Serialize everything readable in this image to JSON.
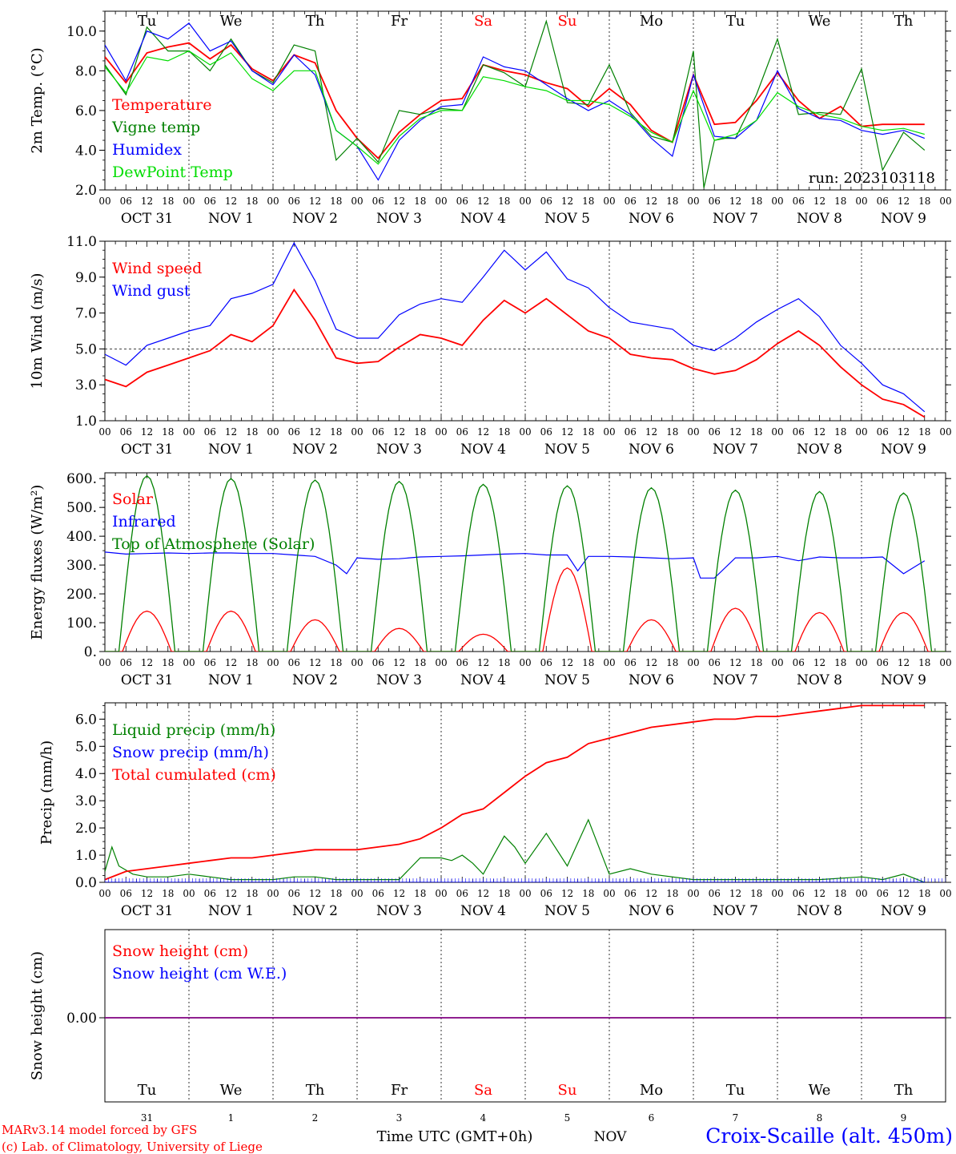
{
  "days": {
    "names": [
      "Tu",
      "We",
      "Th",
      "Fr",
      "Sa",
      "Su",
      "Mo",
      "Tu",
      "We",
      "Th"
    ],
    "weekend_indices": [
      4,
      5
    ],
    "date_labels": [
      "OCT 31",
      "NOV  1",
      "NOV  2",
      "NOV  3",
      "NOV  4",
      "NOV  5",
      "NOV  6",
      "NOV  7",
      "NOV  8",
      "NOV  9"
    ],
    "hour_ticks": [
      "00",
      "06",
      "12",
      "18"
    ],
    "final_tick": "00",
    "day_numbers": [
      "31",
      "1",
      "2",
      "3",
      "4",
      "5",
      "6",
      "7",
      "8",
      "9"
    ]
  },
  "colors": {
    "red": "#ff0000",
    "green": "#008000",
    "blue": "#0000ff",
    "lightgreen": "#00dd00",
    "purple": "#800080",
    "weekend": "#ff0000"
  },
  "run_label": "run: 2023103118",
  "footer": {
    "model": "MARv3.14 model forced by GFS",
    "lab": "(c) Lab. of Climatology, University of Liege",
    "xlabel": "Time UTC (GMT+0h)",
    "month": "NOV",
    "station": "Croix-Scaille (alt. 450m)"
  },
  "chart_data": [
    {
      "type": "line",
      "ylabel": "2m Temp. (°C)",
      "ylim": [
        2,
        11
      ],
      "yticks": [
        "2.0",
        "4.0",
        "6.0",
        "8.0",
        "10.0"
      ],
      "ytick_values": [
        2,
        4,
        6,
        8,
        10
      ],
      "x_unit": "hours since Oct 31 00 UTC",
      "series": [
        {
          "name": "Temperature",
          "color": "#ff0000",
          "x": [
            0,
            6,
            12,
            18,
            24,
            30,
            36,
            42,
            48,
            54,
            60,
            66,
            72,
            78,
            84,
            90,
            96,
            102,
            108,
            114,
            120,
            126,
            132,
            138,
            144,
            150,
            156,
            162,
            168,
            174,
            180,
            186,
            192,
            198,
            204,
            210,
            216,
            222,
            228,
            234
          ],
          "y": [
            8.7,
            7.4,
            8.9,
            9.2,
            9.4,
            8.6,
            9.3,
            8.1,
            7.5,
            8.8,
            8.4,
            6.0,
            4.6,
            3.6,
            4.9,
            5.8,
            6.5,
            6.6,
            8.3,
            8.0,
            7.8,
            7.4,
            7.1,
            6.2,
            7.1,
            6.3,
            5.0,
            4.4,
            7.8,
            5.3,
            5.4,
            6.5,
            7.9,
            6.5,
            5.6,
            6.2,
            5.2,
            5.3,
            5.3,
            5.3
          ]
        },
        {
          "name": "Vigne temp",
          "color": "#008000",
          "x": [
            0,
            6,
            12,
            18,
            24,
            30,
            36,
            42,
            48,
            54,
            60,
            66,
            72,
            78,
            84,
            90,
            96,
            102,
            108,
            114,
            120,
            126,
            132,
            138,
            144,
            150,
            156,
            162,
            168,
            171,
            174,
            177,
            180,
            186,
            192,
            198,
            204,
            210,
            216,
            222,
            228,
            234
          ],
          "y": [
            8.3,
            6.8,
            10.2,
            9.0,
            9.0,
            8.0,
            9.6,
            8.0,
            7.4,
            9.3,
            9.0,
            3.5,
            4.6,
            3.4,
            6.0,
            5.8,
            6.1,
            6.0,
            8.3,
            7.9,
            7.2,
            10.5,
            6.4,
            6.3,
            8.3,
            5.9,
            4.7,
            4.4,
            9.0,
            2.1,
            4.5,
            4.6,
            4.6,
            6.8,
            9.6,
            5.8,
            5.9,
            5.8,
            8.1,
            3.0,
            4.9,
            4.0
          ]
        },
        {
          "name": "Humidex",
          "color": "#0000ff",
          "x": [
            0,
            6,
            12,
            18,
            24,
            30,
            36,
            42,
            48,
            54,
            60,
            66,
            72,
            78,
            84,
            90,
            96,
            102,
            108,
            114,
            120,
            126,
            132,
            138,
            144,
            150,
            156,
            162,
            168,
            174,
            180,
            186,
            192,
            198,
            204,
            210,
            216,
            222,
            228,
            234
          ],
          "y": [
            9.3,
            7.5,
            10.0,
            9.6,
            10.4,
            9.0,
            9.5,
            8.0,
            7.3,
            8.8,
            7.8,
            5.0,
            4.2,
            2.5,
            4.5,
            5.5,
            6.2,
            6.3,
            8.7,
            8.2,
            8.0,
            7.3,
            6.6,
            6.0,
            6.5,
            5.8,
            4.6,
            3.7,
            7.8,
            4.7,
            4.6,
            5.5,
            8.0,
            6.1,
            5.6,
            5.5,
            5.0,
            4.8,
            5.0,
            4.6
          ]
        },
        {
          "name": "DewPoint Temp",
          "color": "#00dd00",
          "x": [
            0,
            6,
            12,
            18,
            24,
            30,
            36,
            42,
            48,
            54,
            60,
            66,
            72,
            78,
            84,
            90,
            96,
            102,
            108,
            114,
            120,
            126,
            132,
            138,
            144,
            150,
            156,
            162,
            168,
            174,
            180,
            186,
            192,
            198,
            204,
            210,
            216,
            222,
            228,
            234
          ],
          "y": [
            8.2,
            6.9,
            8.7,
            8.5,
            9.0,
            8.3,
            8.9,
            7.6,
            7.0,
            8.0,
            8.0,
            5.0,
            4.2,
            3.3,
            4.7,
            5.6,
            6.0,
            6.0,
            7.7,
            7.5,
            7.2,
            7.0,
            6.5,
            6.5,
            6.3,
            5.7,
            4.9,
            4.4,
            7.0,
            4.5,
            4.8,
            5.5,
            6.9,
            6.2,
            5.8,
            5.6,
            5.2,
            5.0,
            5.1,
            4.8
          ]
        }
      ]
    },
    {
      "type": "line",
      "ylabel": "10m Wind (m/s)",
      "ylim": [
        1,
        11
      ],
      "yticks": [
        "1.0",
        "3.0",
        "5.0",
        "7.0",
        "9.0",
        "11.0"
      ],
      "ytick_values": [
        1,
        3,
        5,
        7,
        9,
        11
      ],
      "reference_line": 5.0,
      "series": [
        {
          "name": "Wind speed",
          "color": "#ff0000",
          "x": [
            0,
            6,
            12,
            18,
            24,
            30,
            36,
            42,
            48,
            54,
            60,
            66,
            72,
            78,
            84,
            90,
            96,
            102,
            108,
            114,
            120,
            126,
            132,
            138,
            144,
            150,
            156,
            162,
            168,
            174,
            180,
            186,
            192,
            198,
            204,
            210,
            216,
            222,
            228,
            234
          ],
          "y": [
            3.3,
            2.9,
            3.7,
            4.1,
            4.5,
            4.9,
            5.8,
            5.4,
            6.3,
            8.3,
            6.6,
            4.5,
            4.2,
            4.3,
            5.1,
            5.8,
            5.6,
            5.2,
            6.6,
            7.7,
            7.0,
            7.8,
            6.9,
            6.0,
            5.6,
            4.7,
            4.5,
            4.4,
            3.9,
            3.6,
            3.8,
            4.4,
            5.3,
            6.0,
            5.2,
            4.0,
            3.0,
            2.2,
            1.9,
            1.2
          ]
        },
        {
          "name": "Wind gust",
          "color": "#0000ff",
          "x": [
            0,
            6,
            12,
            18,
            24,
            30,
            36,
            42,
            48,
            54,
            60,
            66,
            72,
            78,
            84,
            90,
            96,
            102,
            108,
            114,
            120,
            126,
            132,
            138,
            144,
            150,
            156,
            162,
            168,
            174,
            180,
            186,
            192,
            198,
            204,
            210,
            216,
            222,
            228,
            234
          ],
          "y": [
            4.7,
            4.1,
            5.2,
            5.6,
            6.0,
            6.3,
            7.8,
            8.1,
            8.6,
            10.9,
            8.8,
            6.1,
            5.6,
            5.6,
            6.9,
            7.5,
            7.8,
            7.6,
            9.0,
            10.5,
            9.4,
            10.4,
            8.9,
            8.4,
            7.3,
            6.5,
            6.3,
            6.1,
            5.2,
            4.9,
            5.6,
            6.5,
            7.2,
            7.8,
            6.8,
            5.2,
            4.2,
            3.0,
            2.5,
            1.5
          ]
        }
      ]
    },
    {
      "type": "line",
      "ylabel": "Energy fluxes (W/m²)",
      "ylim": [
        0,
        620
      ],
      "yticks": [
        "0.",
        "100.",
        "200.",
        "300.",
        "400.",
        "500.",
        "600."
      ],
      "ytick_values": [
        0,
        100,
        200,
        300,
        400,
        500,
        600
      ],
      "series": [
        {
          "name": "Solar",
          "color": "#ff0000",
          "peak_hour": 12,
          "peaks": [
            140,
            140,
            110,
            80,
            60,
            290,
            110,
            150,
            135,
            135
          ],
          "half_width_h": 7
        },
        {
          "name": "Infrared",
          "color": "#0000ff",
          "x": [
            0,
            6,
            12,
            18,
            24,
            30,
            36,
            42,
            48,
            54,
            60,
            66,
            69,
            72,
            78,
            84,
            90,
            96,
            102,
            108,
            114,
            120,
            126,
            132,
            135,
            138,
            144,
            150,
            156,
            162,
            168,
            170,
            174,
            180,
            186,
            192,
            198,
            204,
            210,
            216,
            222,
            228,
            234
          ],
          "y": [
            345,
            338,
            340,
            342,
            340,
            342,
            342,
            340,
            340,
            335,
            330,
            300,
            270,
            325,
            320,
            322,
            328,
            330,
            332,
            335,
            338,
            340,
            335,
            335,
            280,
            330,
            330,
            328,
            325,
            322,
            325,
            255,
            255,
            325,
            325,
            330,
            315,
            328,
            325,
            325,
            328,
            270,
            315
          ]
        },
        {
          "name": "Top of Atmosphere (Solar)",
          "color": "#008000",
          "peak_hour": 12,
          "peaks": [
            610,
            600,
            595,
            590,
            580,
            575,
            568,
            560,
            555,
            550
          ],
          "half_width_h": 8
        }
      ]
    },
    {
      "type": "line",
      "ylabel": "Precip (mm/h)",
      "ylim": [
        0,
        6.6
      ],
      "yticks": [
        "0.0",
        "1.0",
        "2.0",
        "3.0",
        "4.0",
        "5.0",
        "6.0"
      ],
      "ytick_values": [
        0,
        1,
        2,
        3,
        4,
        5,
        6
      ],
      "series": [
        {
          "name": "Liquid precip (mm/h)",
          "color": "#008000",
          "x": [
            0,
            2,
            4,
            8,
            12,
            18,
            24,
            30,
            36,
            48,
            54,
            60,
            66,
            72,
            84,
            90,
            96,
            99,
            102,
            105,
            108,
            114,
            117,
            120,
            126,
            132,
            138,
            144,
            150,
            156,
            168,
            180,
            192,
            204,
            216,
            222,
            228,
            234
          ],
          "y": [
            0.4,
            1.3,
            0.6,
            0.3,
            0.2,
            0.2,
            0.3,
            0.2,
            0.1,
            0.1,
            0.2,
            0.2,
            0.1,
            0.1,
            0.1,
            0.9,
            0.9,
            0.8,
            1.0,
            0.7,
            0.3,
            1.7,
            1.3,
            0.7,
            1.8,
            0.6,
            2.3,
            0.3,
            0.5,
            0.3,
            0.1,
            0.1,
            0.1,
            0.1,
            0.2,
            0.1,
            0.3,
            0.0
          ]
        },
        {
          "name": "Snow precip (mm/h)",
          "color": "#0000ff",
          "x": [
            0,
            234
          ],
          "y": [
            0,
            0
          ]
        },
        {
          "name": "Total cumulated (cm)",
          "color": "#ff0000",
          "x": [
            0,
            6,
            12,
            18,
            24,
            30,
            36,
            42,
            48,
            54,
            60,
            66,
            72,
            78,
            84,
            90,
            96,
            102,
            108,
            114,
            120,
            126,
            132,
            138,
            144,
            150,
            156,
            162,
            168,
            174,
            180,
            186,
            192,
            198,
            204,
            210,
            216,
            222,
            228,
            234
          ],
          "y": [
            0.1,
            0.4,
            0.5,
            0.6,
            0.7,
            0.8,
            0.9,
            0.9,
            1.0,
            1.1,
            1.2,
            1.2,
            1.2,
            1.3,
            1.4,
            1.6,
            2.0,
            2.5,
            2.7,
            3.3,
            3.9,
            4.4,
            4.6,
            5.1,
            5.3,
            5.5,
            5.7,
            5.8,
            5.9,
            6.0,
            6.0,
            6.1,
            6.1,
            6.2,
            6.3,
            6.4,
            6.5,
            6.5,
            6.5,
            6.5
          ]
        }
      ]
    },
    {
      "type": "line",
      "ylabel": "Snow height (cm)",
      "yticks": [
        "0.00"
      ],
      "series": [
        {
          "name": "Snow height (cm)",
          "color": "#ff0000",
          "x": [
            0,
            240
          ],
          "y": [
            0,
            0
          ]
        },
        {
          "name": "Snow height (cm W.E.)",
          "color": "#0000ff",
          "x": [
            0,
            240
          ],
          "y": [
            0,
            0
          ]
        }
      ]
    }
  ]
}
